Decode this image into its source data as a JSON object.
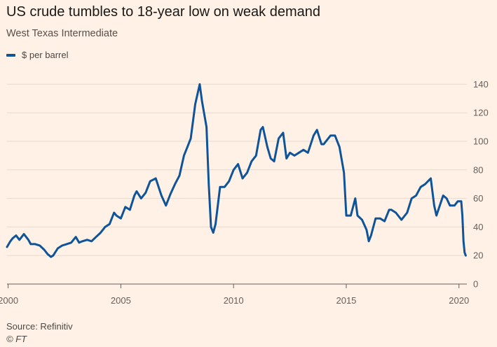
{
  "header": {
    "title": "US crude tumbles to 18-year low on weak demand",
    "subtitle": "West Texas Intermediate"
  },
  "legend": {
    "label": "$ per barrel"
  },
  "footer": {
    "source": "Source: Refinitiv",
    "credit": "© FT"
  },
  "colors": {
    "background": "#fff1e5",
    "series": "#0f5499",
    "grid": "#e6d9ce",
    "axis": "#66605c"
  },
  "chart_data": {
    "type": "line",
    "title": "US crude tumbles to 18-year low on weak demand",
    "subtitle": "West Texas Intermediate",
    "xlabel": "",
    "ylabel": "",
    "xlim": [
      1999.95,
      2020.35
    ],
    "ylim": [
      0,
      150
    ],
    "x_ticks": [
      2000,
      2005,
      2010,
      2015,
      2020
    ],
    "y_ticks": [
      0,
      20,
      40,
      60,
      80,
      100,
      120,
      140
    ],
    "grid": "horizontal",
    "y_axis_side": "right",
    "legend_position": "top-left",
    "series": [
      {
        "name": "$ per barrel",
        "x": [
          1999.95,
          2000.1,
          2000.2,
          2000.35,
          2000.5,
          2000.7,
          2000.9,
          2001.0,
          2001.2,
          2001.4,
          2001.6,
          2001.75,
          2001.9,
          2002.0,
          2002.2,
          2002.4,
          2002.6,
          2002.8,
          2003.0,
          2003.15,
          2003.3,
          2003.5,
          2003.7,
          2003.9,
          2004.1,
          2004.3,
          2004.5,
          2004.7,
          2004.8,
          2005.0,
          2005.2,
          2005.4,
          2005.6,
          2005.7,
          2005.9,
          2006.1,
          2006.3,
          2006.55,
          2006.8,
          2007.0,
          2007.2,
          2007.4,
          2007.6,
          2007.8,
          2007.95,
          2008.1,
          2008.3,
          2008.5,
          2008.6,
          2008.8,
          2008.9,
          2009.0,
          2009.1,
          2009.2,
          2009.4,
          2009.6,
          2009.8,
          2010.0,
          2010.2,
          2010.4,
          2010.6,
          2010.8,
          2011.0,
          2011.2,
          2011.3,
          2011.5,
          2011.65,
          2011.8,
          2012.0,
          2012.2,
          2012.35,
          2012.5,
          2012.7,
          2012.9,
          2013.1,
          2013.3,
          2013.55,
          2013.7,
          2013.9,
          2014.0,
          2014.3,
          2014.5,
          2014.7,
          2014.9,
          2015.0,
          2015.2,
          2015.4,
          2015.5,
          2015.7,
          2015.9,
          2016.0,
          2016.1,
          2016.3,
          2016.5,
          2016.7,
          2016.9,
          2017.0,
          2017.2,
          2017.45,
          2017.7,
          2017.9,
          2018.1,
          2018.3,
          2018.5,
          2018.75,
          2018.9,
          2019.0,
          2019.15,
          2019.3,
          2019.45,
          2019.6,
          2019.8,
          2019.95,
          2020.1,
          2020.15,
          2020.2,
          2020.25,
          2020.3
        ],
        "values": [
          26,
          30,
          32,
          34,
          31,
          35,
          31,
          28,
          28,
          27,
          24,
          21,
          19,
          20,
          25,
          27,
          28,
          29,
          33,
          29,
          30,
          31,
          30,
          33,
          36,
          40,
          42,
          50,
          48,
          46,
          54,
          52,
          62,
          65,
          60,
          64,
          72,
          74,
          62,
          55,
          63,
          70,
          76,
          90,
          96,
          102,
          126,
          140,
          128,
          110,
          70,
          40,
          36,
          42,
          68,
          68,
          72,
          80,
          84,
          74,
          78,
          86,
          90,
          108,
          110,
          96,
          88,
          86,
          102,
          106,
          88,
          92,
          90,
          92,
          94,
          92,
          104,
          108,
          98,
          98,
          104,
          104,
          96,
          78,
          48,
          48,
          60,
          48,
          45,
          38,
          30,
          34,
          46,
          46,
          44,
          52,
          52,
          50,
          45,
          50,
          60,
          62,
          68,
          70,
          74,
          55,
          48,
          55,
          62,
          60,
          55,
          55,
          58,
          58,
          48,
          30,
          22,
          20
        ]
      }
    ]
  }
}
